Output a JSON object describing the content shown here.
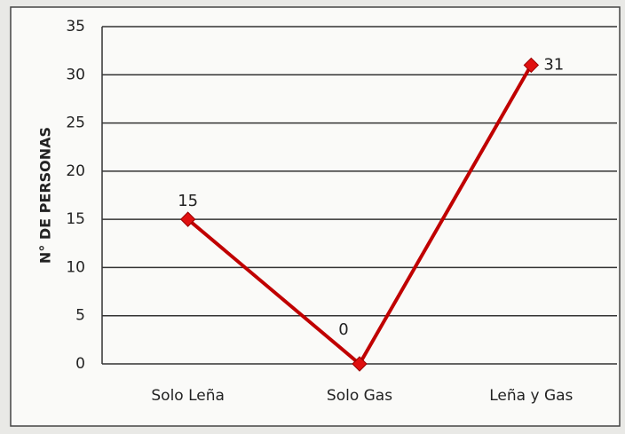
{
  "chart_data": {
    "type": "line",
    "y_label": "N° DE PERSONAS",
    "categories": [
      "Solo Leña",
      "Solo Gas",
      "Leña y Gas"
    ],
    "values": [
      15,
      0,
      31
    ],
    "color": "#c00000",
    "ylim": [
      0,
      35
    ],
    "yticks": [
      0,
      5,
      10,
      15,
      20,
      25,
      30,
      35
    ],
    "grid": true
  }
}
